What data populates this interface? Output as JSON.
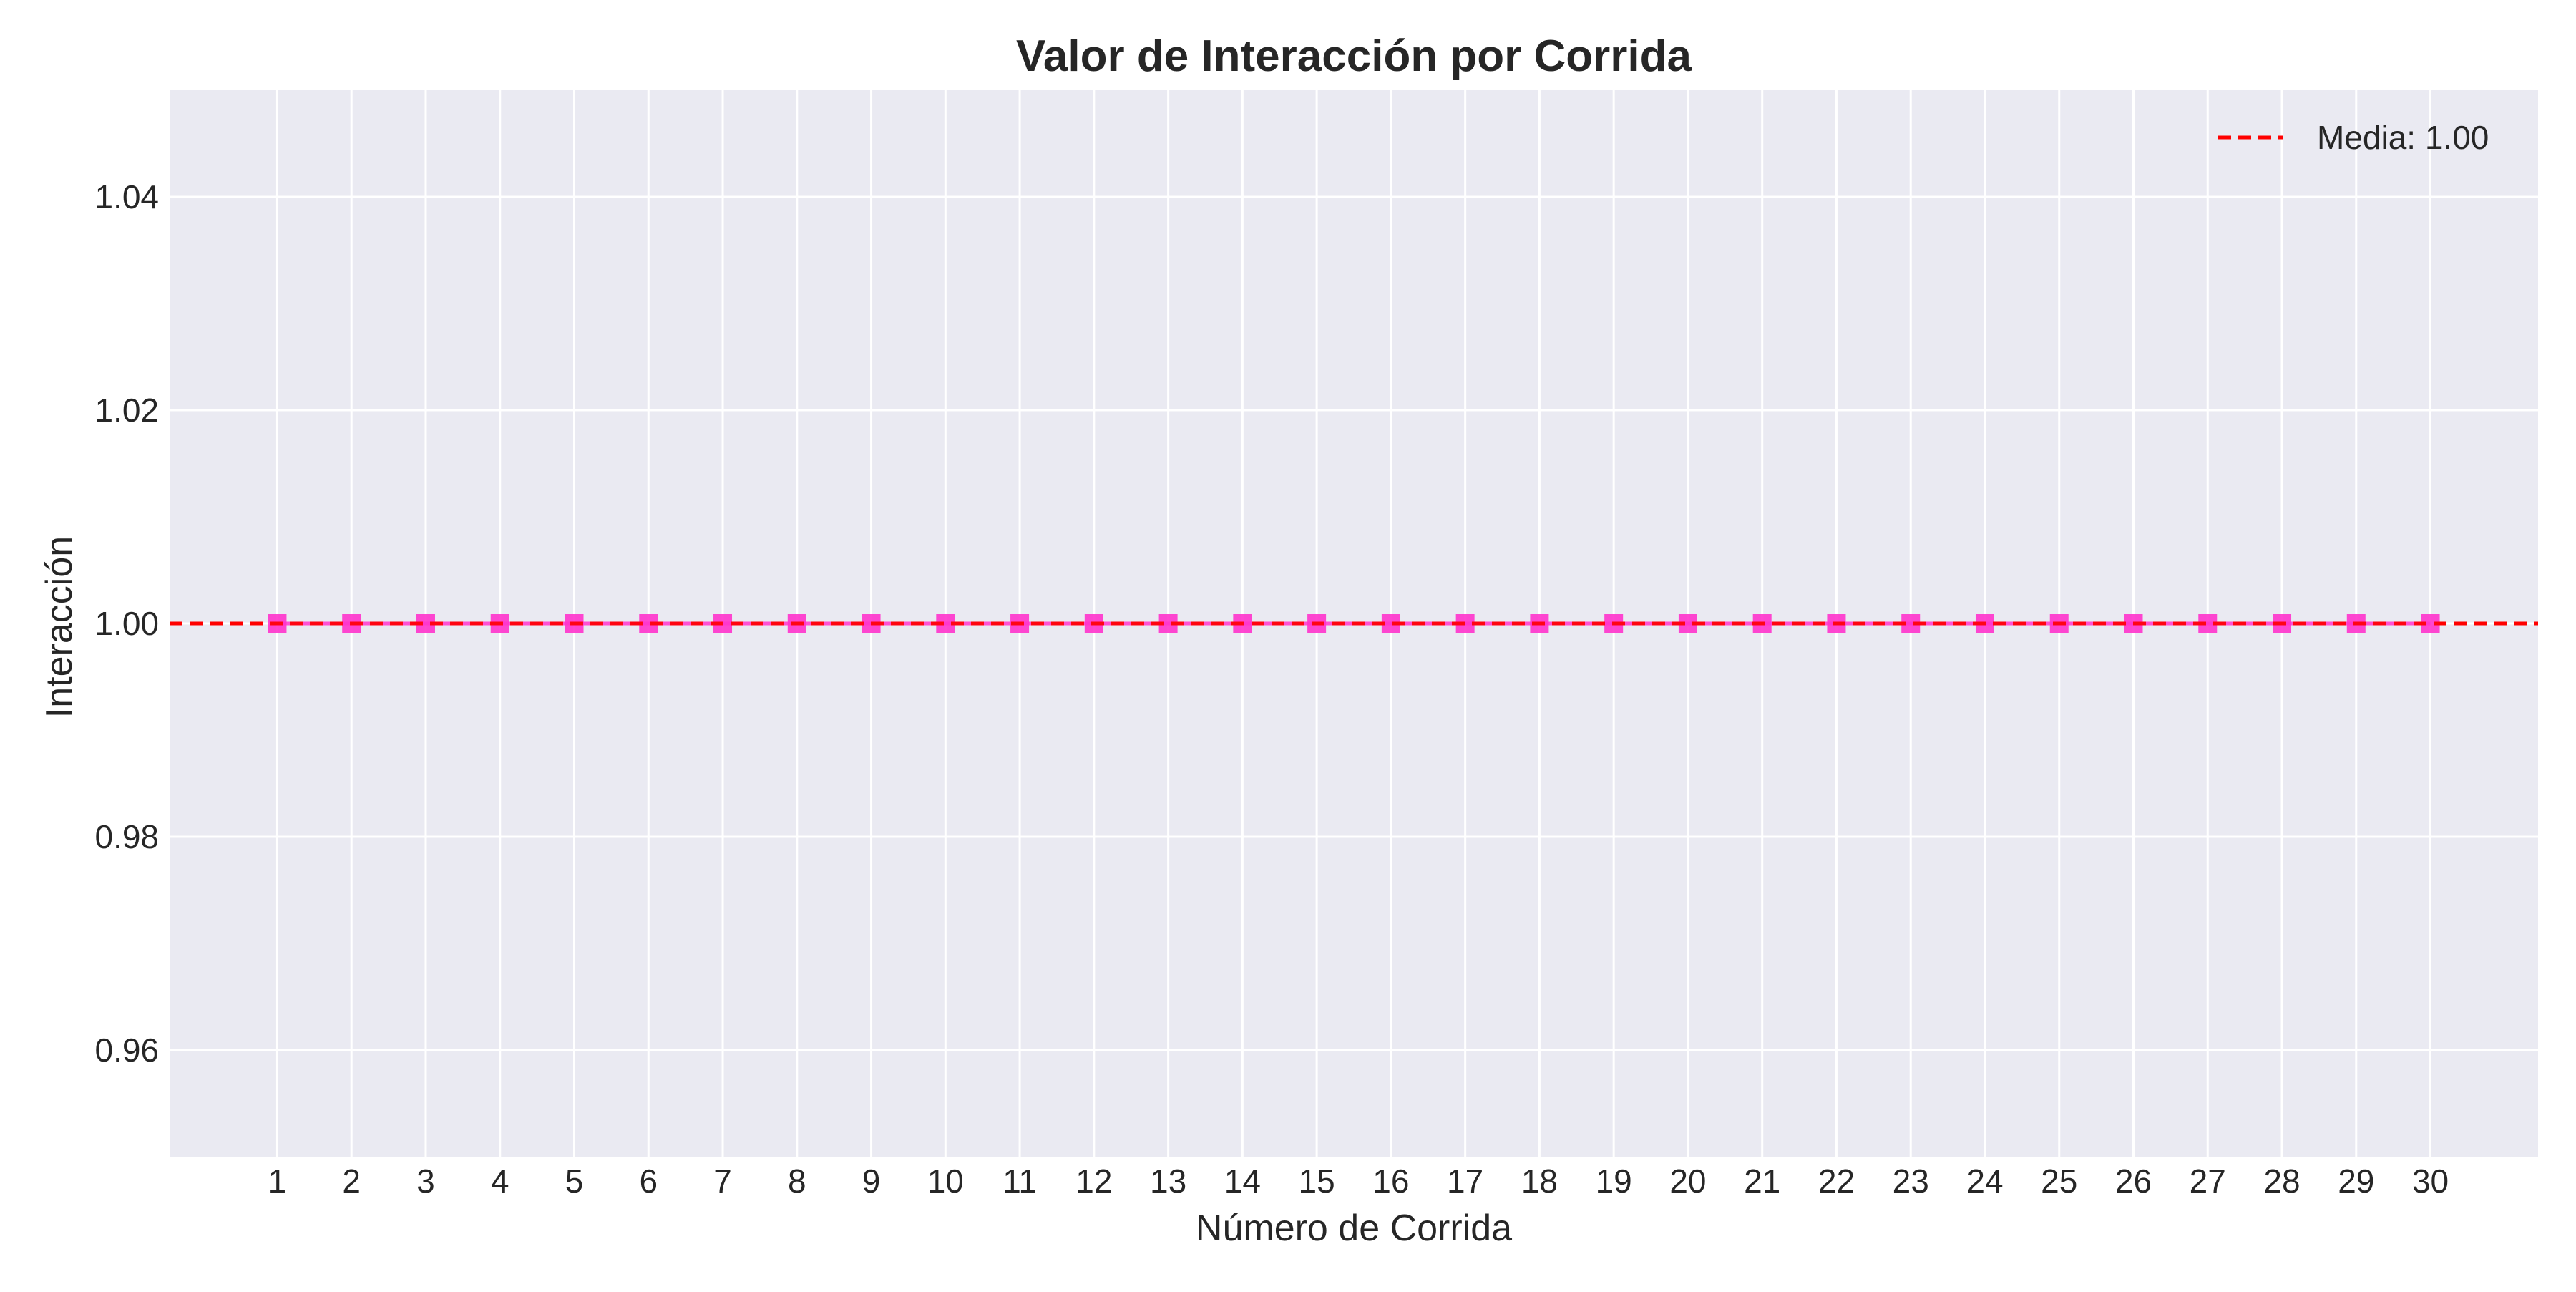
{
  "chart_data": {
    "type": "line",
    "title": "Valor de Interacción por Corrida",
    "xlabel": "Número de Corrida",
    "ylabel": "Interacción",
    "x": [
      1,
      2,
      3,
      4,
      5,
      6,
      7,
      8,
      9,
      10,
      11,
      12,
      13,
      14,
      15,
      16,
      17,
      18,
      19,
      20,
      21,
      22,
      23,
      24,
      25,
      26,
      27,
      28,
      29,
      30
    ],
    "xticks": [
      "1",
      "2",
      "3",
      "4",
      "5",
      "6",
      "7",
      "8",
      "9",
      "10",
      "11",
      "12",
      "13",
      "14",
      "15",
      "16",
      "17",
      "18",
      "19",
      "20",
      "21",
      "22",
      "23",
      "24",
      "25",
      "26",
      "27",
      "28",
      "29",
      "30"
    ],
    "series": [
      {
        "values": [
          1,
          1,
          1,
          1,
          1,
          1,
          1,
          1,
          1,
          1,
          1,
          1,
          1,
          1,
          1,
          1,
          1,
          1,
          1,
          1,
          1,
          1,
          1,
          1,
          1,
          1,
          1,
          1,
          1,
          1
        ],
        "color": "#ff33cc",
        "marker": "square"
      }
    ],
    "reference_line": {
      "label": "Media: 1.00",
      "value": 1.0,
      "color": "#ff0000",
      "style": "dashed"
    },
    "yticks": [
      "0.96",
      "0.98",
      "1.00",
      "1.02",
      "1.04"
    ],
    "ytick_values": [
      0.96,
      0.98,
      1.0,
      1.02,
      1.04
    ],
    "xlim": [
      -0.45,
      31.45
    ],
    "ylim": [
      0.95,
      1.05
    ],
    "grid": true,
    "legend_position": "top-right",
    "background": "#eaeaf2",
    "grid_color": "#ffffff"
  }
}
